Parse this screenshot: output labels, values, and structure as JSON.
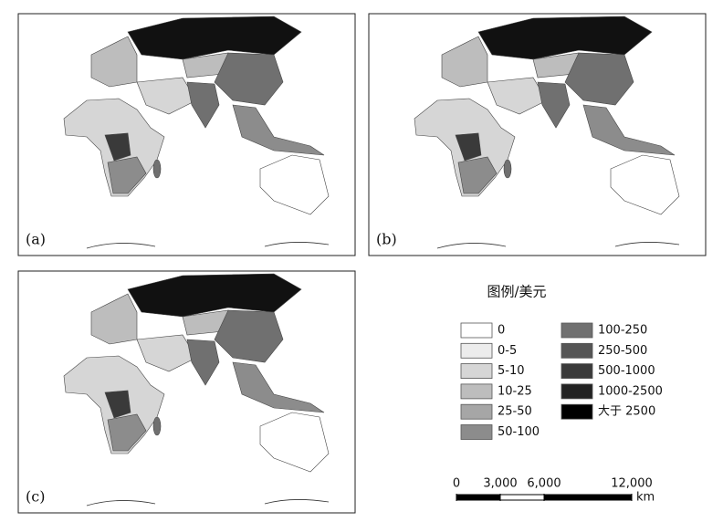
{
  "panels": [
    {
      "label": "(a)"
    },
    {
      "label": "(b)"
    },
    {
      "label": "(c)"
    }
  ],
  "legend": {
    "title": "图例/美元",
    "items": [
      {
        "label": "0",
        "color": "#ffffff"
      },
      {
        "label": "0-5",
        "color": "#ececec"
      },
      {
        "label": "5-10",
        "color": "#d6d6d6"
      },
      {
        "label": "10-25",
        "color": "#bdbdbd"
      },
      {
        "label": "25-50",
        "color": "#a6a6a6"
      },
      {
        "label": "50-100",
        "color": "#8c8c8c"
      },
      {
        "label": "100-250",
        "color": "#707070"
      },
      {
        "label": "250-500",
        "color": "#555555"
      },
      {
        "label": "500-1000",
        "color": "#3a3a3a"
      },
      {
        "label": "1000-2500",
        "color": "#222222"
      },
      {
        "label": "大于 2500",
        "color": "#000000"
      }
    ]
  },
  "scale_bar": {
    "unit": "km",
    "ticks": [
      0,
      {
        "value": 3000,
        "label": "3,000"
      },
      {
        "value": 6000,
        "label": "6,000"
      },
      {
        "value": 12000,
        "label": "12,000"
      }
    ]
  }
}
